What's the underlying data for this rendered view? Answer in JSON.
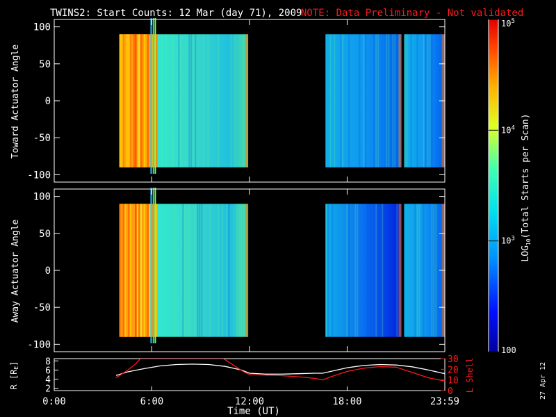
{
  "title": "TWINS2: Start Counts: 12 Mar (day  71), 2009",
  "note": "NOTE: Data Preliminary - Not validated",
  "date_stamp": "27 Apr 12",
  "colors": {
    "background": "#000000",
    "note": "#ff1a1a",
    "frame": "#ffffff",
    "r_line": "#ffffff",
    "lshell_line": "#ff1a1a"
  },
  "chart_data": [
    {
      "type": "heatmap",
      "panel": "top",
      "ylabel": "Toward Actuator Angle",
      "yticks": [
        100,
        50,
        0,
        -50,
        -100
      ],
      "ylim": [
        -110,
        110
      ],
      "xlim_hours": [
        0,
        24
      ],
      "data_extent_y": [
        -90,
        90
      ],
      "blocks": [
        {
          "start": "4:00",
          "end": "6:20",
          "level": "high"
        },
        {
          "start": "6:20",
          "end": "11:55",
          "level": "mid"
        },
        {
          "start": "16:40",
          "end": "21:20",
          "level": "mid-low"
        },
        {
          "start": "21:30",
          "end": "23:59",
          "level": "mid-low"
        }
      ]
    },
    {
      "type": "heatmap",
      "panel": "bottom",
      "ylabel": "Away Actuator Angle",
      "yticks": [
        100,
        50,
        0,
        -50,
        -100
      ],
      "ylim": [
        -110,
        110
      ],
      "xlim_hours": [
        0,
        24
      ],
      "data_extent_y": [
        -90,
        90
      ],
      "blocks": [
        {
          "start": "4:00",
          "end": "6:20",
          "level": "high"
        },
        {
          "start": "6:20",
          "end": "11:55",
          "level": "mid"
        },
        {
          "start": "16:40",
          "end": "21:20",
          "level": "low"
        },
        {
          "start": "21:30",
          "end": "23:59",
          "level": "mid-low"
        }
      ]
    },
    {
      "type": "line",
      "panel": "orbit",
      "ylabel_left": "R [R",
      "ylabel_left_sub": "E",
      "ylabel_left_close": "]",
      "ylabel_right": "L Shell",
      "yticks_left": [
        8,
        6,
        4,
        2
      ],
      "ylim_left": [
        1.5,
        8.5
      ],
      "yticks_right": [
        30,
        20,
        10,
        0
      ],
      "ylim_right": [
        0,
        30
      ],
      "series": [
        {
          "axis": "left",
          "x_hours": [
            3.8,
            4.5,
            5.5,
            6.5,
            7.5,
            8.5,
            9.5,
            10.5,
            11.5,
            12.0,
            13,
            14,
            15,
            16,
            16.5,
            17,
            18,
            19,
            20,
            21,
            22,
            23,
            24
          ],
          "values": [
            4.8,
            5.6,
            6.3,
            6.9,
            7.2,
            7.3,
            7.2,
            6.8,
            6.0,
            5.3,
            5.1,
            5.1,
            5.2,
            5.3,
            5.3,
            5.7,
            6.5,
            7.0,
            7.2,
            7.1,
            6.7,
            6.0,
            5.2
          ]
        },
        {
          "axis": "right",
          "x_hours": [
            3.8,
            4.5,
            5.0,
            5.3,
            10.4,
            11.0,
            11.6,
            12.0,
            13,
            14,
            15,
            16,
            16.5,
            17,
            18,
            19,
            20,
            21,
            22,
            23,
            24
          ],
          "values": [
            12,
            19,
            25,
            30,
            30,
            24,
            18,
            15,
            14.5,
            14,
            13,
            11.5,
            10,
            13,
            18,
            21,
            22.5,
            22,
            17,
            12,
            9
          ]
        }
      ]
    },
    {
      "type": "colorbar",
      "label": "LOG",
      "label_sub": "10",
      "label_rest": "(Total Starts per Scan)",
      "scale": "log",
      "range": [
        100,
        100000
      ],
      "tick_labels": [
        {
          "value": 100000,
          "base": "10",
          "exp": "5"
        },
        {
          "value": 10000,
          "base": "10",
          "exp": "4"
        },
        {
          "value": 1000,
          "base": "10",
          "exp": "3"
        },
        {
          "value": 100,
          "base": "100",
          "exp": ""
        }
      ]
    }
  ],
  "x_axis": {
    "label": "Time (UT)",
    "tick_labels": [
      "0:00",
      "6:00",
      "12:00",
      "18:00",
      "23:59"
    ],
    "tick_hours": [
      0,
      6,
      12,
      18,
      24
    ]
  }
}
